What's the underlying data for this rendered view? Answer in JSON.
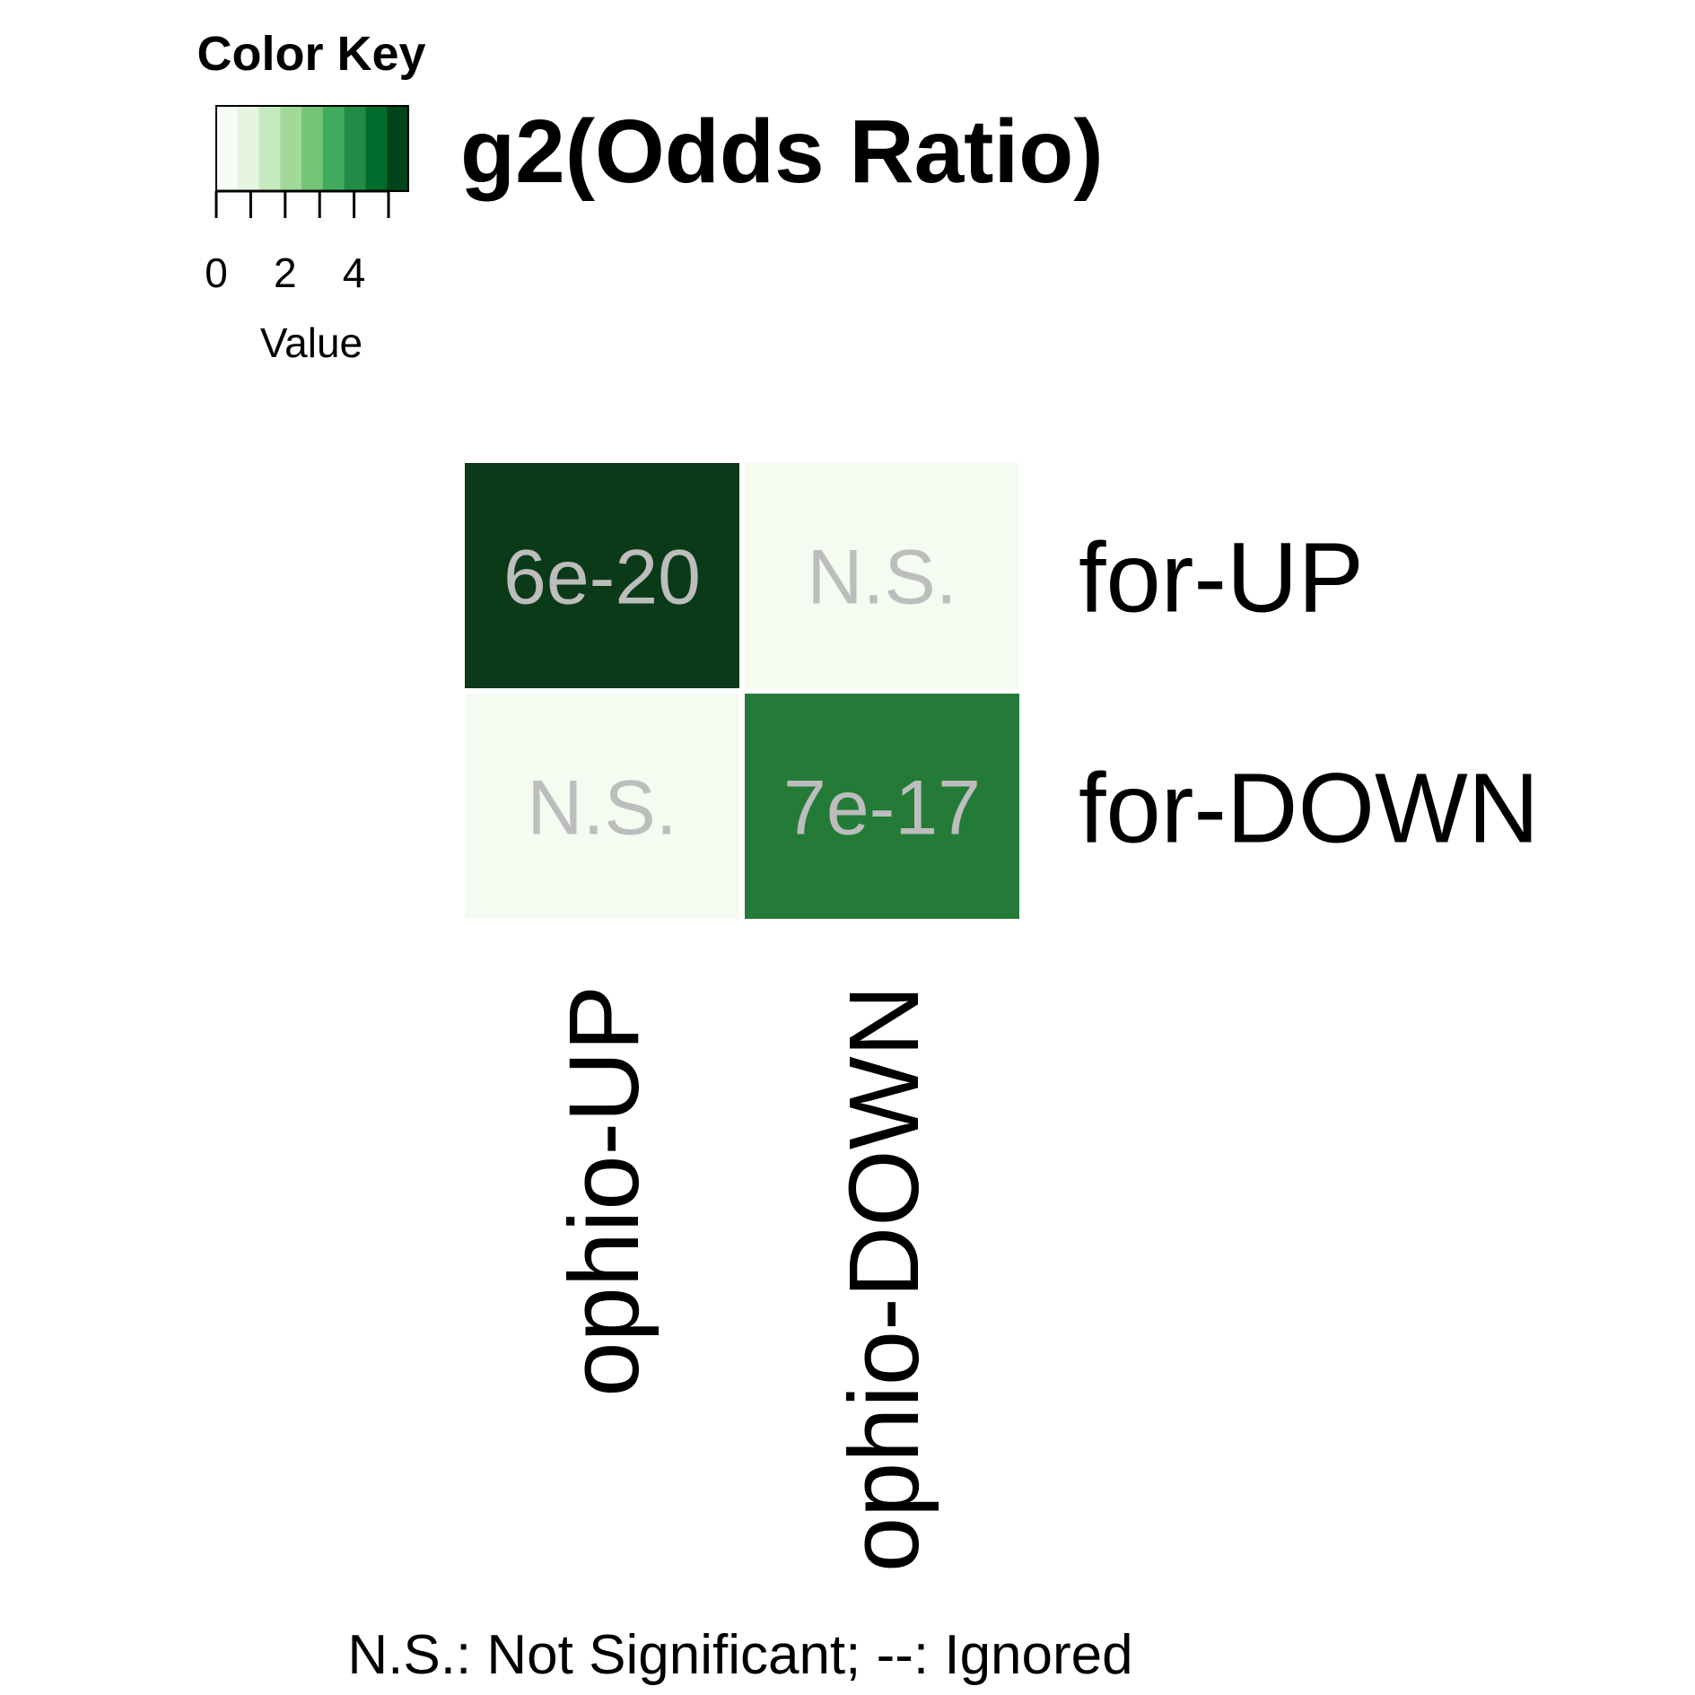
{
  "chart_data": {
    "type": "heatmap",
    "title": "g2(Odds Ratio)",
    "color_key": {
      "title": "Color Key",
      "label": "Value",
      "ticks": [
        "0",
        "2",
        "4"
      ],
      "tick_values": [
        0,
        2,
        4
      ],
      "range": [
        0,
        5.6
      ],
      "palette": [
        "#f7fcf5",
        "#e5f5e0",
        "#c7e9c0",
        "#a1d99b",
        "#74c476",
        "#41ab5d",
        "#238b45",
        "#006d2c",
        "#00441b"
      ]
    },
    "rows": [
      "for-UP",
      "for-DOWN"
    ],
    "columns": [
      "ophio-UP",
      "ophio-DOWN"
    ],
    "values": [
      [
        5.6,
        0
      ],
      [
        0,
        4.0
      ]
    ],
    "cell_text": [
      [
        "6e-20",
        "N.S."
      ],
      [
        "N.S.",
        "7e-17"
      ]
    ],
    "cell_colors": [
      [
        "#0b3a18",
        "#f4fbf1"
      ],
      [
        "#f4fbf1",
        "#237b37"
      ]
    ],
    "cell_text_color": "#bdbdbd",
    "footnote": "N.S.: Not Significant; --: Ignored"
  }
}
